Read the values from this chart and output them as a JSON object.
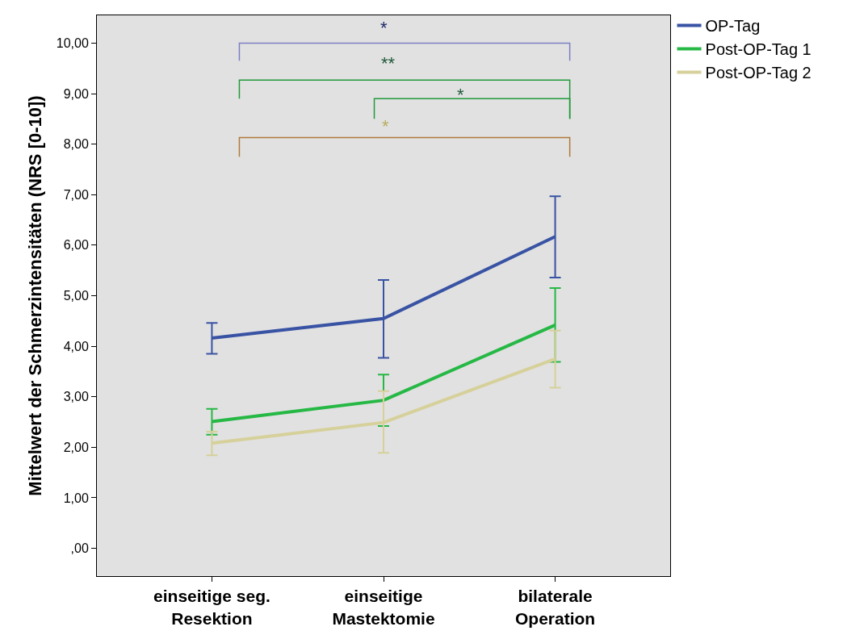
{
  "chart_data": {
    "type": "line",
    "ylabel": "Mittelwert der Schmerzintensitäten (NRS [0-10])",
    "categories": [
      "einseitige seg.\nResektion",
      "einseitige\nMastektomie",
      "bilaterale\nOperation"
    ],
    "series": [
      {
        "name": "OP-Tag",
        "color": "#3953a4",
        "values": [
          4.16,
          4.55,
          6.17
        ],
        "errors": [
          [
            3.85,
            4.46
          ],
          [
            3.77,
            5.31
          ],
          [
            5.36,
            6.97
          ]
        ]
      },
      {
        "name": "Post-OP-Tag 1",
        "color": "#26b845",
        "values": [
          2.51,
          2.93,
          4.42
        ],
        "errors": [
          [
            2.25,
            2.76
          ],
          [
            2.42,
            3.44
          ],
          [
            3.69,
            5.15
          ]
        ]
      },
      {
        "name": "Post-OP-Tag 2",
        "color": "#d6d09a",
        "values": [
          2.08,
          2.49,
          3.75
        ],
        "errors": [
          [
            1.84,
            2.31
          ],
          [
            1.89,
            3.11
          ],
          [
            3.18,
            4.31
          ]
        ]
      }
    ],
    "ylim": [
      -0.55,
      10.55
    ],
    "yticks": [
      {
        "value": 0,
        "label": ",00"
      },
      {
        "value": 1,
        "label": "1,00"
      },
      {
        "value": 2,
        "label": "2,00"
      },
      {
        "value": 3,
        "label": "3,00"
      },
      {
        "value": 4,
        "label": "4,00"
      },
      {
        "value": 5,
        "label": "5,00"
      },
      {
        "value": 6,
        "label": "6,00"
      },
      {
        "value": 7,
        "label": "7,00"
      },
      {
        "value": 8,
        "label": "8,00"
      },
      {
        "value": 9,
        "label": "9,00"
      },
      {
        "value": 10,
        "label": "10,00"
      }
    ],
    "annotations": [
      "*",
      "**",
      "*",
      "*"
    ],
    "grid": false,
    "legend": "top right",
    "marker": "none",
    "line_style": "solid"
  }
}
